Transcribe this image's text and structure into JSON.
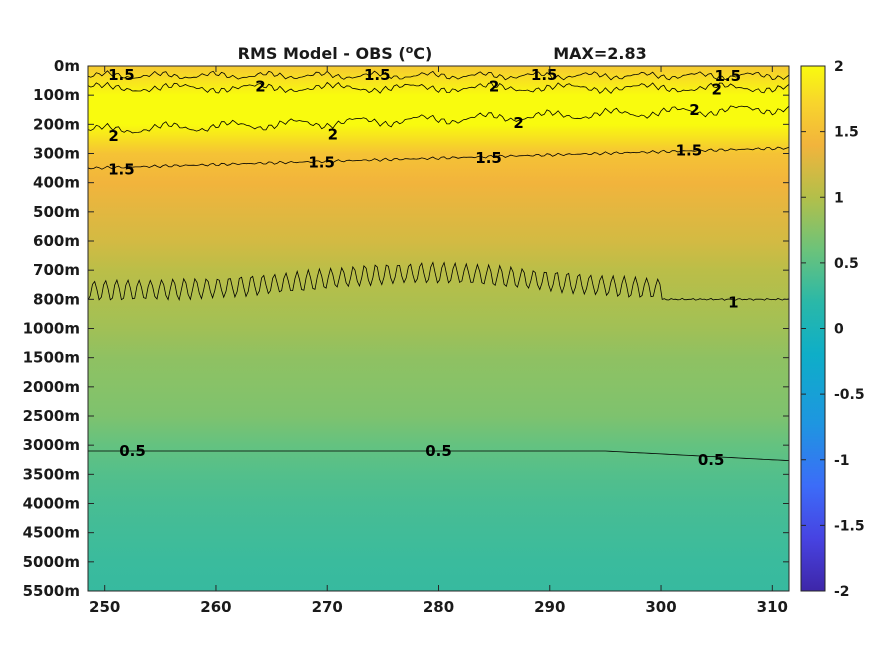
{
  "chart_data": {
    "type": "heatmap",
    "title": "RMS Model - OBS (",
    "title_unit": "o",
    "title_unit_tail": "C)",
    "max_label": "MAX=2.83",
    "xlabel": "",
    "ylabel": "",
    "x_ticks": [
      250,
      260,
      270,
      280,
      290,
      300,
      310
    ],
    "xlim": [
      248.5,
      311.5
    ],
    "y_ticks": [
      "0m",
      "100m",
      "200m",
      "300m",
      "400m",
      "500m",
      "600m",
      "700m",
      "800m",
      "1000m",
      "1500m",
      "2000m",
      "2500m",
      "3000m",
      "3500m",
      "4000m",
      "4500m",
      "5000m",
      "5500m"
    ],
    "colorbar": {
      "ticks": [
        "2",
        "1.5",
        "1",
        "0.5",
        "0",
        "-0.5",
        "-1",
        "-1.5",
        "-2"
      ],
      "range": [
        -2,
        2
      ],
      "colormap": "parula"
    },
    "field_profile": [
      {
        "depth": "0m",
        "value": 1.6
      },
      {
        "depth": "100m",
        "value": 2.05
      },
      {
        "depth": "200m",
        "value": 2.0
      },
      {
        "depth": "300m",
        "value": 1.55
      },
      {
        "depth": "400m",
        "value": 1.4
      },
      {
        "depth": "500m",
        "value": 1.3
      },
      {
        "depth": "600m",
        "value": 1.2
      },
      {
        "depth": "700m",
        "value": 1.05
      },
      {
        "depth": "800m",
        "value": 0.97
      },
      {
        "depth": "1000m",
        "value": 0.9
      },
      {
        "depth": "1500m",
        "value": 0.8
      },
      {
        "depth": "2000m",
        "value": 0.75
      },
      {
        "depth": "2500m",
        "value": 0.7
      },
      {
        "depth": "3000m",
        "value": 0.55
      },
      {
        "depth": "3500m",
        "value": 0.45
      },
      {
        "depth": "4000m",
        "value": 0.38
      },
      {
        "depth": "4500m",
        "value": 0.34
      },
      {
        "depth": "5000m",
        "value": 0.3
      },
      {
        "depth": "5500m",
        "value": 0.28
      }
    ],
    "contour_labels": [
      {
        "text": "1.5",
        "x": 251.5,
        "depth_index": 0.3
      },
      {
        "text": "1.5",
        "x": 274.5,
        "depth_index": 0.3
      },
      {
        "text": "1.5",
        "x": 289.5,
        "depth_index": 0.3
      },
      {
        "text": "1.5",
        "x": 306.0,
        "depth_index": 0.35
      },
      {
        "text": "2",
        "x": 264.0,
        "depth_index": 0.7
      },
      {
        "text": "2",
        "x": 285.0,
        "depth_index": 0.7
      },
      {
        "text": "2",
        "x": 305.0,
        "depth_index": 0.8
      },
      {
        "text": "2",
        "x": 250.8,
        "depth_index": 2.4
      },
      {
        "text": "2",
        "x": 270.5,
        "depth_index": 2.35
      },
      {
        "text": "2",
        "x": 287.2,
        "depth_index": 1.95
      },
      {
        "text": "2",
        "x": 303.0,
        "depth_index": 1.5
      },
      {
        "text": "1.5",
        "x": 251.5,
        "depth_index": 3.55
      },
      {
        "text": "1.5",
        "x": 269.5,
        "depth_index": 3.3
      },
      {
        "text": "1.5",
        "x": 284.5,
        "depth_index": 3.15
      },
      {
        "text": "1.5",
        "x": 302.5,
        "depth_index": 2.9
      },
      {
        "text": "1",
        "x": 306.5,
        "depth_index": 8.1
      },
      {
        "text": "0.5",
        "x": 252.5,
        "depth_index": 13.2
      },
      {
        "text": "0.5",
        "x": 280.0,
        "depth_index": 13.2
      },
      {
        "text": "0.5",
        "x": 304.5,
        "depth_index": 13.5
      }
    ]
  }
}
